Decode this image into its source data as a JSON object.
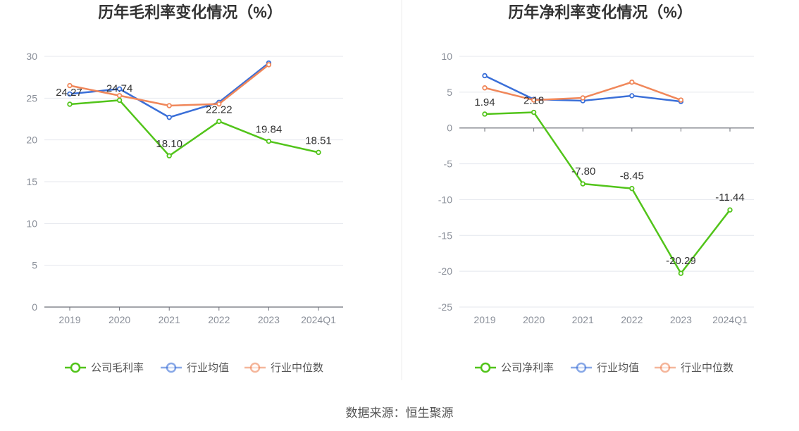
{
  "chart_data": [
    {
      "type": "line",
      "title": "历年毛利率变化情况（%）",
      "categories": [
        "2019",
        "2020",
        "2021",
        "2022",
        "2023",
        "2024Q1"
      ],
      "ylim": [
        0,
        30
      ],
      "yticks": [
        0,
        5,
        10,
        15,
        20,
        25,
        30
      ],
      "grid": true,
      "legend_position": "bottom",
      "series": [
        {
          "name": "公司毛利率",
          "color": "#52c41a",
          "values": [
            24.27,
            24.74,
            18.1,
            22.22,
            19.84,
            18.51
          ],
          "labels": [
            "24.27",
            "24.74",
            "18.10",
            "22.22",
            "19.84",
            "18.51"
          ]
        },
        {
          "name": "行业均值",
          "color": "#3a6fd8",
          "values": [
            25.5,
            26.1,
            22.7,
            24.5,
            29.2,
            null
          ]
        },
        {
          "name": "行业中位数",
          "color": "#f0875a",
          "values": [
            26.5,
            25.3,
            24.1,
            24.3,
            29.0,
            null
          ]
        }
      ]
    },
    {
      "type": "line",
      "title": "历年净利率变化情况（%）",
      "categories": [
        "2019",
        "2020",
        "2021",
        "2022",
        "2023",
        "2024Q1"
      ],
      "ylim": [
        -25,
        10
      ],
      "yticks": [
        -25,
        -20,
        -15,
        -10,
        -5,
        0,
        5,
        10
      ],
      "grid": true,
      "legend_position": "bottom",
      "series": [
        {
          "name": "公司净利率",
          "color": "#52c41a",
          "values": [
            1.94,
            2.18,
            -7.8,
            -8.45,
            -20.29,
            -11.44
          ],
          "labels": [
            "1.94",
            "2.18",
            "-7.80",
            "-8.45",
            "-20.29",
            "-11.44"
          ]
        },
        {
          "name": "行业均值",
          "color": "#3a6fd8",
          "values": [
            7.3,
            4.0,
            3.8,
            4.5,
            3.7,
            null
          ]
        },
        {
          "name": "行业中位数",
          "color": "#f0875a",
          "values": [
            5.6,
            3.9,
            4.2,
            6.4,
            3.9,
            null
          ]
        }
      ]
    }
  ],
  "footer": {
    "source": "数据来源：恒生聚源"
  },
  "colors": {
    "grid": "#e4e7ee",
    "axis": "#6e7079",
    "divider": "#eeeeee"
  }
}
